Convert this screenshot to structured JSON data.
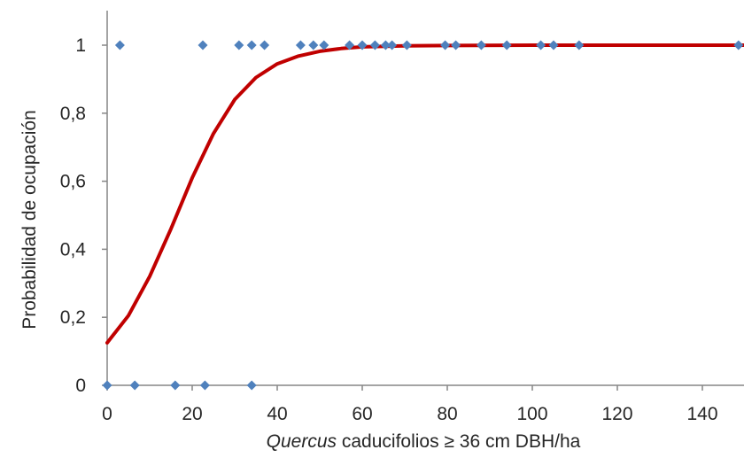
{
  "chart_data": {
    "type": "scatter",
    "title": "",
    "xlabel": {
      "italic_part": "Quercus",
      "rest": " caducifolios ≥ 36 cm DBH/ha"
    },
    "ylabel": "Probabilidad de ocupación",
    "xlim": [
      0,
      150
    ],
    "ylim": [
      0,
      1.1
    ],
    "x_ticks": [
      0,
      20,
      40,
      60,
      80,
      100,
      120,
      140
    ],
    "x_tick_labels": [
      "0",
      "20",
      "40",
      "60",
      "80",
      "100",
      "120",
      "140"
    ],
    "y_ticks": [
      0,
      0.2,
      0.4,
      0.6,
      0.8,
      1
    ],
    "y_tick_labels": [
      "0",
      "0,2",
      "0,4",
      "0,6",
      "0,8",
      "1"
    ],
    "grid": false,
    "legend": "none",
    "series": [
      {
        "kind": "points",
        "color": "#4f81bd",
        "marker": "diamond",
        "points": [
          [
            3,
            1
          ],
          [
            22.5,
            1
          ],
          [
            31,
            1
          ],
          [
            34,
            1
          ],
          [
            37,
            1
          ],
          [
            45.5,
            1
          ],
          [
            48.5,
            1
          ],
          [
            51,
            1
          ],
          [
            57,
            1
          ],
          [
            60,
            1
          ],
          [
            63,
            1
          ],
          [
            65.5,
            1
          ],
          [
            67,
            1
          ],
          [
            70.5,
            1
          ],
          [
            79.5,
            1
          ],
          [
            82,
            1
          ],
          [
            88,
            1
          ],
          [
            94,
            1
          ],
          [
            102,
            1
          ],
          [
            105,
            1
          ],
          [
            111,
            1
          ],
          [
            148.5,
            1
          ],
          [
            0,
            0
          ],
          [
            6.5,
            0
          ],
          [
            16,
            0
          ],
          [
            23,
            0
          ],
          [
            34,
            0
          ]
        ]
      },
      {
        "kind": "line",
        "color": "#c00000",
        "points": [
          [
            0,
            0.125
          ],
          [
            5,
            0.205
          ],
          [
            10,
            0.32
          ],
          [
            15,
            0.46
          ],
          [
            20,
            0.61
          ],
          [
            25,
            0.74
          ],
          [
            30,
            0.84
          ],
          [
            35,
            0.905
          ],
          [
            40,
            0.945
          ],
          [
            45,
            0.968
          ],
          [
            50,
            0.982
          ],
          [
            55,
            0.99
          ],
          [
            60,
            0.995
          ],
          [
            70,
            0.998
          ],
          [
            80,
            0.999
          ],
          [
            100,
            1
          ],
          [
            150,
            1
          ]
        ]
      }
    ]
  }
}
